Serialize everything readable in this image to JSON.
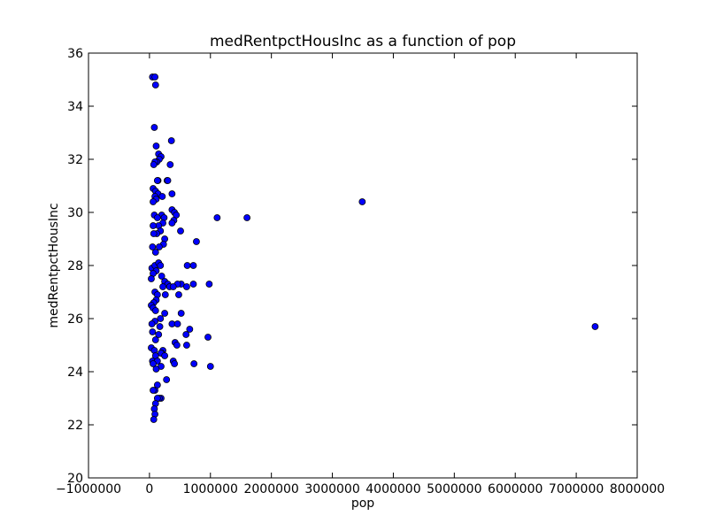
{
  "chart_data": {
    "type": "scatter",
    "title": "medRentpctHousInc as a function of pop",
    "xlabel": "pop",
    "ylabel": "medRentpctHousInc",
    "xlim": [
      -1000000,
      8000000
    ],
    "ylim": [
      20,
      36
    ],
    "xticks": [
      -1000000,
      0,
      1000000,
      2000000,
      3000000,
      4000000,
      5000000,
      6000000,
      7000000,
      8000000
    ],
    "xtick_labels": [
      "−1000000",
      "0",
      "1000000",
      "2000000",
      "3000000",
      "4000000",
      "5000000",
      "6000000",
      "7000000",
      "8000000"
    ],
    "yticks": [
      20,
      22,
      24,
      26,
      28,
      30,
      32,
      34,
      36
    ],
    "ytick_labels": [
      "20",
      "22",
      "24",
      "26",
      "28",
      "30",
      "32",
      "34",
      "36"
    ],
    "grid": false,
    "marker_color": "#0000ff",
    "marker_edge_color": "#000000",
    "series": [
      {
        "x": [
          50000,
          90000,
          100000,
          80000,
          360000,
          110000,
          150000,
          190000,
          160000,
          120000,
          90000,
          70000,
          340000,
          140000,
          130000,
          290000,
          300000,
          60000,
          100000,
          140000,
          370000,
          210000,
          90000,
          110000,
          60000,
          370000,
          1110000,
          1600000,
          3490000,
          410000,
          440000,
          200000,
          80000,
          130000,
          240000,
          510000,
          220000,
          150000,
          60000,
          400000,
          370000,
          180000,
          120000,
          70000,
          250000,
          230000,
          50000,
          160000,
          770000,
          100000,
          620000,
          720000,
          40000,
          90000,
          150000,
          180000,
          110000,
          60000,
          200000,
          250000,
          300000,
          520000,
          610000,
          460000,
          330000,
          390000,
          980000,
          720000,
          30000,
          220000,
          90000,
          130000,
          260000,
          110000,
          70000,
          30000,
          480000,
          520000,
          60000,
          100000,
          250000,
          180000,
          90000,
          660000,
          40000,
          370000,
          460000,
          170000,
          600000,
          50000,
          150000,
          420000,
          960000,
          100000,
          610000,
          450000,
          30000,
          80000,
          220000,
          200000,
          190000,
          250000,
          100000,
          50000,
          130000,
          390000,
          410000,
          60000,
          190000,
          730000,
          1000000,
          110000,
          280000,
          130000,
          90000,
          60000,
          190000,
          160000,
          130000,
          100000,
          80000,
          90000,
          70000,
          7310000
        ],
        "y": [
          35.1,
          35.1,
          34.8,
          33.2,
          32.7,
          32.5,
          32.2,
          32.1,
          32.0,
          31.9,
          31.9,
          31.8,
          31.8,
          31.2,
          31.2,
          31.2,
          31.2,
          30.9,
          30.8,
          30.7,
          30.7,
          30.6,
          30.6,
          30.5,
          30.4,
          30.1,
          29.8,
          29.8,
          30.4,
          30.0,
          29.9,
          29.9,
          29.9,
          29.8,
          29.8,
          29.3,
          29.6,
          29.5,
          29.5,
          29.7,
          29.6,
          29.3,
          29.2,
          29.2,
          29.0,
          28.8,
          28.7,
          28.7,
          28.9,
          28.5,
          28.0,
          28.0,
          27.9,
          28.0,
          28.1,
          28.0,
          27.8,
          27.7,
          27.6,
          27.4,
          27.3,
          27.3,
          27.2,
          27.3,
          27.2,
          27.2,
          27.3,
          27.3,
          27.5,
          27.2,
          27.0,
          26.9,
          26.9,
          26.7,
          26.6,
          26.5,
          26.9,
          26.2,
          26.4,
          26.3,
          26.2,
          26.0,
          25.9,
          25.6,
          25.8,
          25.8,
          25.8,
          25.7,
          25.4,
          25.5,
          25.4,
          25.1,
          25.3,
          25.2,
          25.0,
          25.0,
          24.9,
          24.8,
          24.8,
          24.7,
          24.7,
          24.6,
          24.6,
          24.4,
          24.4,
          24.4,
          24.3,
          24.3,
          24.2,
          24.3,
          24.2,
          24.1,
          23.7,
          23.5,
          23.3,
          23.3,
          23.0,
          23.0,
          23.0,
          22.8,
          22.6,
          22.4,
          22.2,
          25.7
        ]
      }
    ]
  }
}
